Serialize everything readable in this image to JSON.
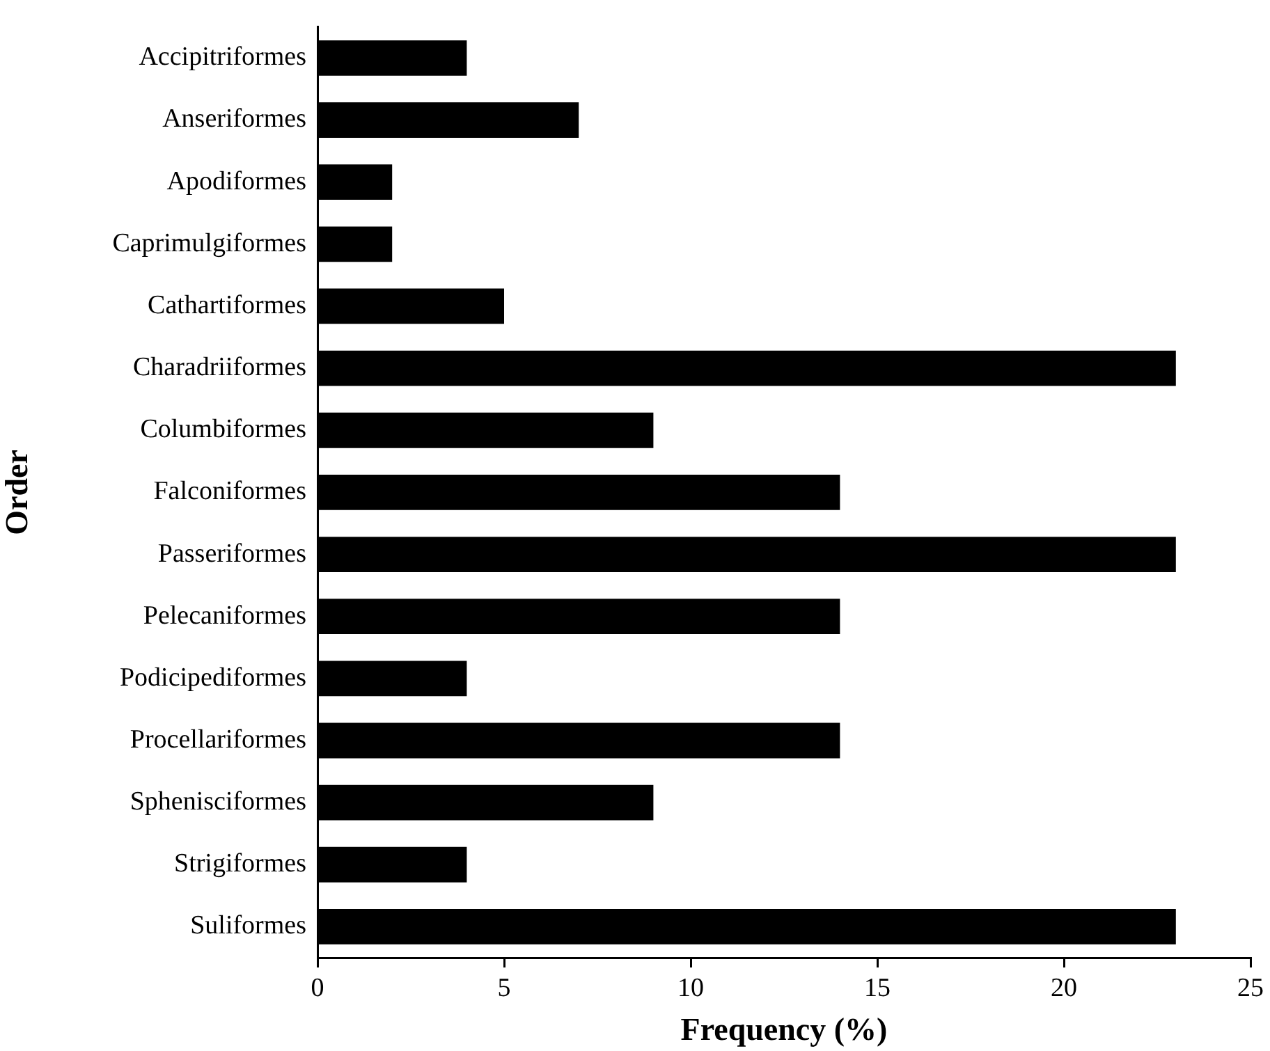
{
  "chart_data": {
    "type": "bar",
    "orientation": "horizontal",
    "xlabel": "Frequency (%)",
    "ylabel": "Order",
    "categories": [
      "Accipitriformes",
      "Anseriformes",
      "Apodiformes",
      "Caprimulgiformes",
      "Cathartiformes",
      "Charadriiformes",
      "Columbiformes",
      "Falconiformes",
      "Passeriformes",
      "Pelecaniformes",
      "Podicipediformes",
      "Procellariformes",
      "Sphenisciformes",
      "Strigiformes",
      "Suliformes"
    ],
    "values": [
      4,
      7,
      2,
      2,
      5,
      23,
      9,
      14,
      23,
      14,
      4,
      14,
      9,
      4,
      23
    ],
    "color": "#000000",
    "xlim": [
      0,
      25
    ],
    "xticks": [
      0,
      5,
      10,
      15,
      20,
      25
    ],
    "grid": false,
    "legend": false
  }
}
